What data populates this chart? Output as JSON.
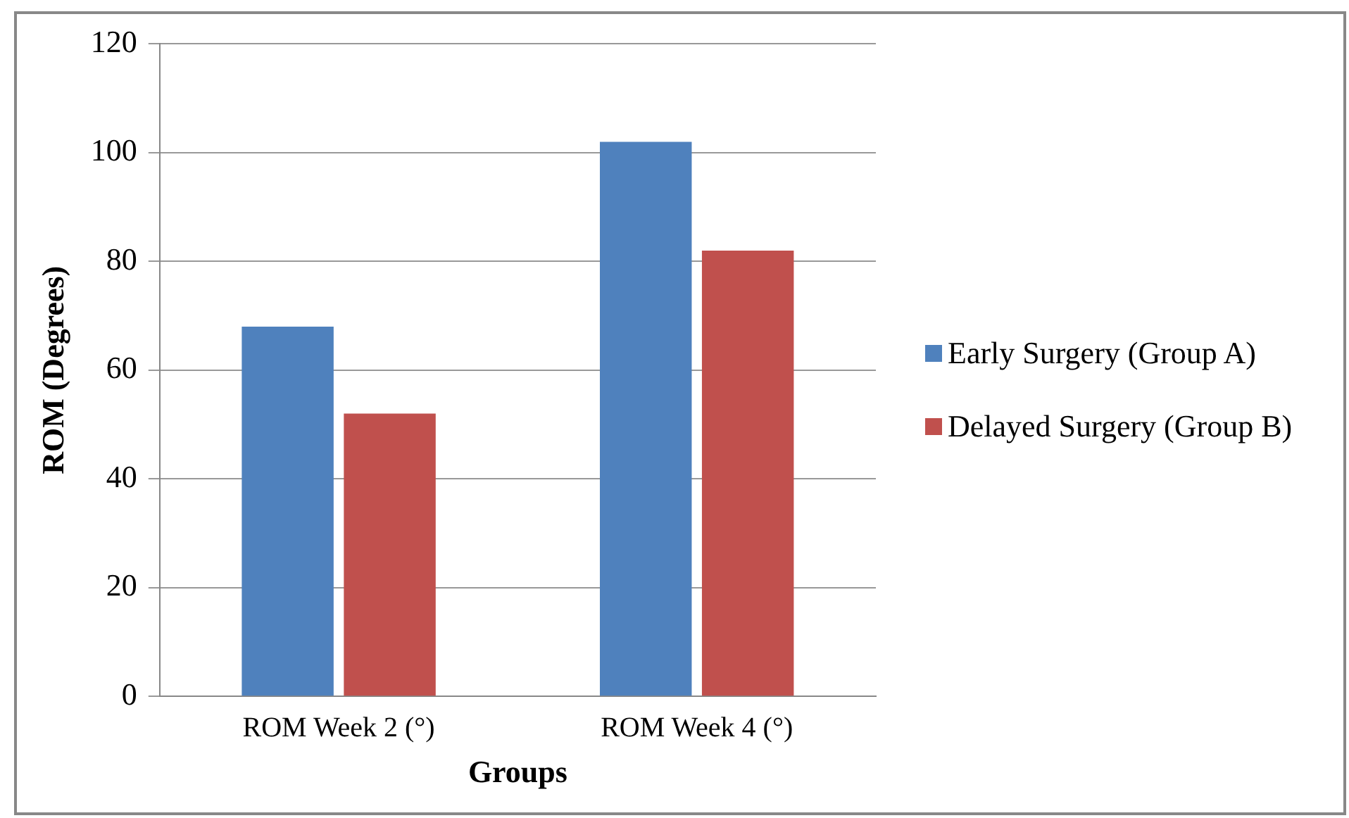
{
  "chart_data": {
    "type": "bar",
    "xlabel": "Groups",
    "ylabel": "ROM (Degrees)",
    "categories": [
      "ROM Week 2 (°)",
      "ROM Week 4 (°)"
    ],
    "series": [
      {
        "name": "Early Surgery (Group A)",
        "color": "#4f81bd",
        "values": [
          68,
          102
        ]
      },
      {
        "name": "Delayed Surgery (Group B)",
        "color": "#c0504d",
        "values": [
          52,
          82
        ]
      }
    ],
    "ylim": [
      0,
      120
    ],
    "yticks": [
      0,
      20,
      40,
      60,
      80,
      100,
      120
    ],
    "grid": "y",
    "legend": "right"
  }
}
